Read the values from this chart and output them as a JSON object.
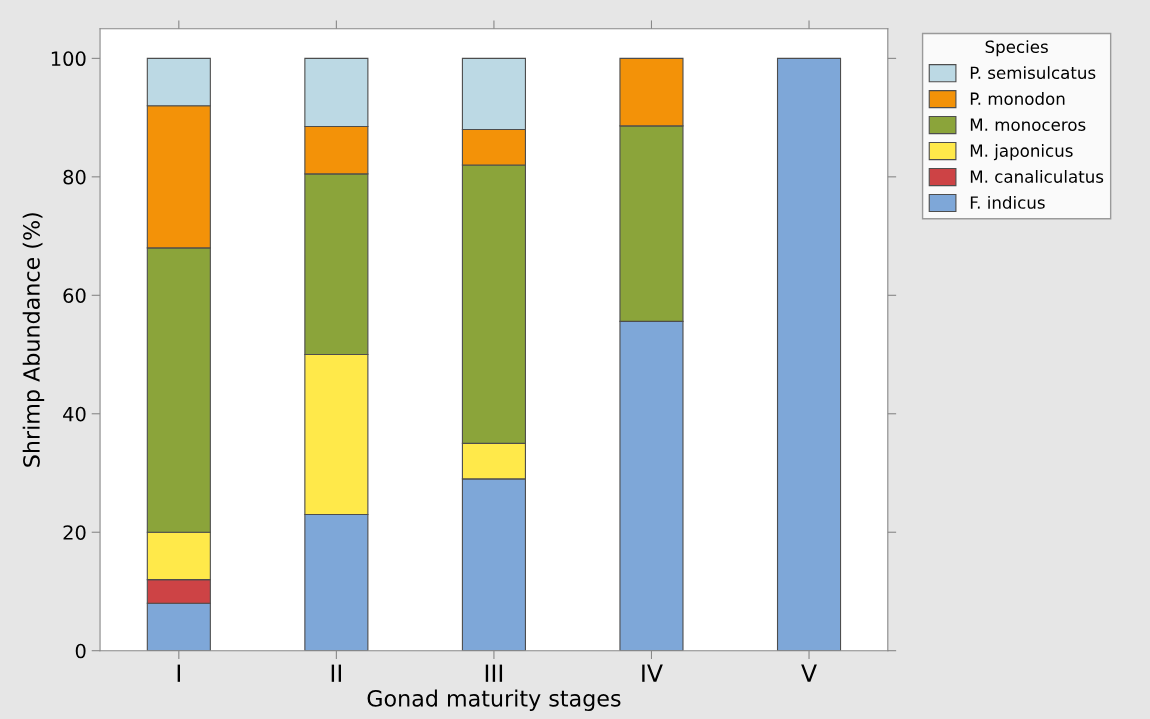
{
  "chart_data": {
    "type": "bar",
    "stacked": true,
    "xlabel": "Gonad maturity stages",
    "ylabel": "Shrimp Abundance (%)",
    "legend_title": "Species",
    "legend": "top right",
    "grid": false,
    "categories": [
      "I",
      "II",
      "III",
      "IV",
      "V"
    ],
    "ylim": [
      0,
      105
    ],
    "yticks": [
      0,
      20,
      40,
      60,
      80,
      100
    ],
    "series": [
      {
        "name": "F. indicus",
        "color": "#7ea7d8",
        "values": [
          8,
          23,
          29,
          55.6,
          100
        ]
      },
      {
        "name": "M. canaliculatus",
        "color": "#cd4345",
        "values": [
          4,
          null,
          null,
          null,
          null
        ]
      },
      {
        "name": "M. japonicus",
        "color": "#ffe94a",
        "values": [
          8,
          27,
          6,
          null,
          null
        ]
      },
      {
        "name": "M. monoceros",
        "color": "#8ba43a",
        "values": [
          48,
          30.5,
          47,
          33,
          null
        ]
      },
      {
        "name": "P. monodon",
        "color": "#f39208",
        "values": [
          24,
          8,
          6,
          11.4,
          null
        ]
      },
      {
        "name": "P. semisulcatus",
        "color": "#bcd9e4",
        "values": [
          8,
          11.5,
          12,
          null,
          null
        ]
      }
    ]
  }
}
